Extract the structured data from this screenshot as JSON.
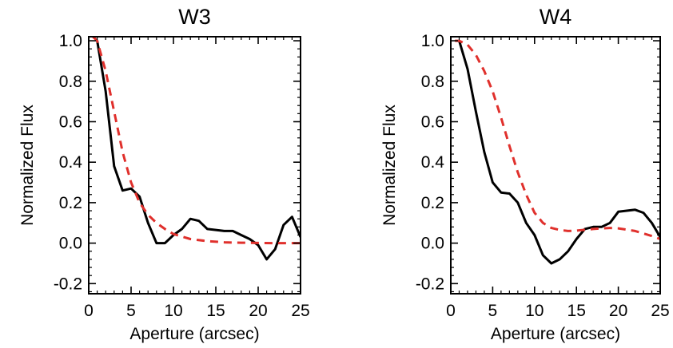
{
  "chart_data": [
    {
      "type": "line",
      "title": "W3",
      "xlabel": "Aperture (arcsec)",
      "ylabel": "Normalized Flux",
      "xlim": [
        0,
        25
      ],
      "ylim": [
        -0.25,
        1.02
      ],
      "x_ticks": [
        "0",
        "5",
        "10",
        "15",
        "20",
        "25"
      ],
      "y_ticks": [
        "-0.2",
        "0.0",
        "0.2",
        "0.4",
        "0.6",
        "0.8",
        "1.0"
      ],
      "x_tick_values": [
        0,
        5,
        10,
        15,
        20,
        25
      ],
      "y_tick_values": [
        -0.2,
        0.0,
        0.2,
        0.4,
        0.6,
        0.8,
        1.0
      ],
      "series": [
        {
          "style": "solid",
          "color": "#000000",
          "x": [
            1,
            2,
            3,
            4,
            5,
            6,
            7,
            8,
            9,
            10,
            11,
            12,
            13,
            14,
            15,
            16,
            17,
            18,
            19,
            20,
            21,
            22,
            23,
            24,
            25
          ],
          "y": [
            1.0,
            0.75,
            0.38,
            0.26,
            0.27,
            0.23,
            0.1,
            0.0,
            0.0,
            0.04,
            0.07,
            0.12,
            0.11,
            0.07,
            0.065,
            0.06,
            0.06,
            0.04,
            0.02,
            -0.01,
            -0.08,
            -0.03,
            0.09,
            0.13,
            0.03
          ]
        },
        {
          "style": "dashed",
          "color": "#e0302c",
          "x": [
            0.5,
            1,
            2,
            3,
            4,
            5,
            6,
            7,
            8,
            9,
            10,
            12,
            14,
            16,
            18,
            20,
            22,
            24,
            25
          ],
          "y": [
            1.02,
            1.0,
            0.85,
            0.65,
            0.45,
            0.3,
            0.2,
            0.14,
            0.1,
            0.07,
            0.045,
            0.02,
            0.01,
            0.004,
            0.002,
            0.001,
            0.0,
            0.0,
            0.0
          ]
        }
      ]
    },
    {
      "type": "line",
      "title": "W4",
      "xlabel": "Aperture (arcsec)",
      "ylabel": "Normalized Flux",
      "xlim": [
        0,
        25
      ],
      "ylim": [
        -0.25,
        1.02
      ],
      "x_ticks": [
        "0",
        "5",
        "10",
        "15",
        "20",
        "25"
      ],
      "y_ticks": [
        "-0.2",
        "0.0",
        "0.2",
        "0.4",
        "0.6",
        "0.8",
        "1.0"
      ],
      "x_tick_values": [
        0,
        5,
        10,
        15,
        20,
        25
      ],
      "y_tick_values": [
        -0.2,
        0.0,
        0.2,
        0.4,
        0.6,
        0.8,
        1.0
      ],
      "series": [
        {
          "style": "solid",
          "color": "#000000",
          "x": [
            1,
            2,
            3,
            4,
            5,
            6,
            7,
            8,
            9,
            10,
            11,
            12,
            13,
            14,
            15,
            16,
            17,
            18,
            19,
            20,
            21,
            22,
            23,
            24,
            25
          ],
          "y": [
            1.0,
            0.86,
            0.65,
            0.45,
            0.3,
            0.25,
            0.245,
            0.2,
            0.1,
            0.04,
            -0.06,
            -0.1,
            -0.08,
            -0.04,
            0.02,
            0.07,
            0.08,
            0.08,
            0.1,
            0.155,
            0.16,
            0.165,
            0.15,
            0.1,
            0.03
          ]
        },
        {
          "style": "dashed",
          "color": "#e0302c",
          "x": [
            0.5,
            1,
            2,
            3,
            4,
            5,
            6,
            7,
            8,
            9,
            10,
            11,
            12,
            13,
            14,
            15,
            16,
            17,
            18,
            19,
            20,
            22,
            24,
            25
          ],
          "y": [
            1.0,
            1.0,
            0.98,
            0.93,
            0.85,
            0.75,
            0.62,
            0.48,
            0.35,
            0.24,
            0.15,
            0.1,
            0.075,
            0.065,
            0.06,
            0.062,
            0.066,
            0.07,
            0.073,
            0.075,
            0.073,
            0.06,
            0.035,
            0.02
          ]
        }
      ]
    }
  ]
}
